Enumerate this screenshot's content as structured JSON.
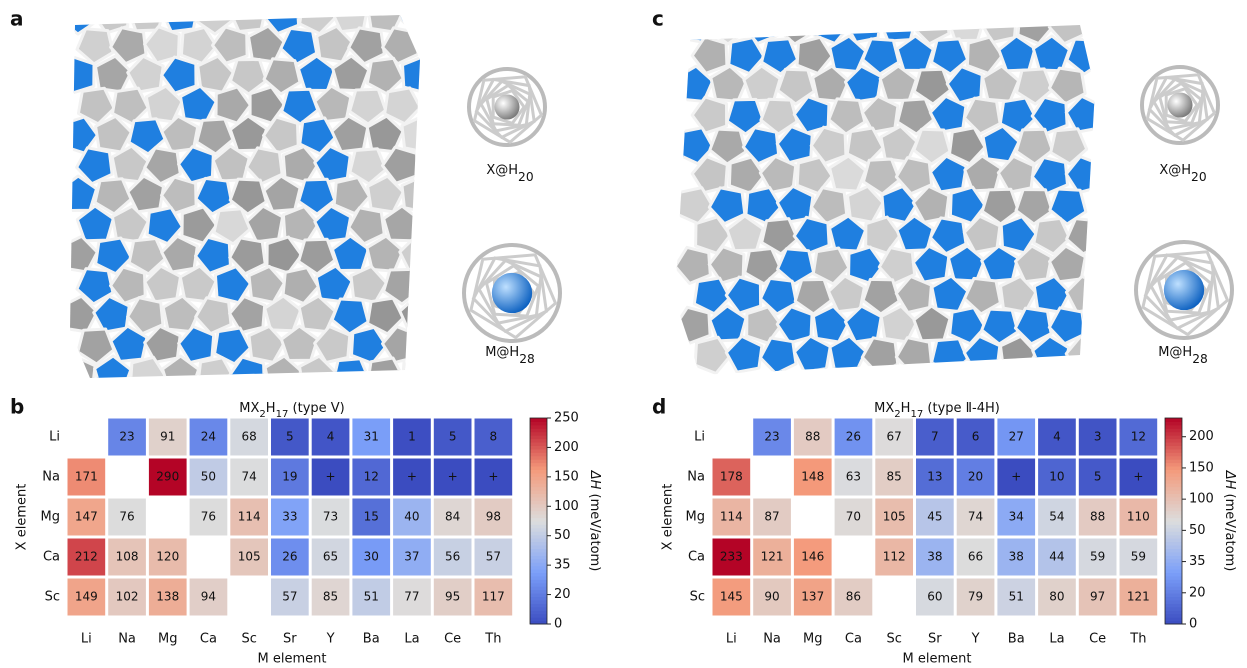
{
  "panels": {
    "a": {
      "label": "a",
      "insets": [
        [
          {
            "text": "X@H"
          },
          {
            "text": "20",
            "sub": true
          }
        ],
        [
          {
            "text": "M@H"
          },
          {
            "text": "28",
            "sub": true
          }
        ]
      ]
    },
    "c": {
      "label": "c",
      "insets": [
        [
          {
            "text": "X@H"
          },
          {
            "text": "20",
            "sub": true
          }
        ],
        [
          {
            "text": "M@H"
          },
          {
            "text": "28",
            "sub": true
          }
        ]
      ]
    }
  },
  "chart_data": [
    {
      "type": "heatmap",
      "panel_label": "b",
      "title": [
        {
          "text": "MX"
        },
        {
          "text": "2",
          "sub": true
        },
        {
          "text": "H"
        },
        {
          "text": "17",
          "sub": true
        },
        {
          "text": " (type V)"
        }
      ],
      "x_label": "M element",
      "y_label": "X element",
      "categories": [
        "Li",
        "Na",
        "Mg",
        "Ca",
        "Sc",
        "Sr",
        "Y",
        "Ba",
        "La",
        "Ce",
        "Th"
      ],
      "rows": [
        "Li",
        "Na",
        "Mg",
        "Ca",
        "Sc"
      ],
      "values": [
        [
          null,
          23,
          91,
          24,
          68,
          5,
          4,
          31,
          1,
          5,
          8
        ],
        [
          171,
          null,
          290,
          50,
          74,
          19,
          "+",
          12,
          "+",
          "+",
          "+"
        ],
        [
          147,
          76,
          null,
          76,
          114,
          33,
          73,
          15,
          40,
          84,
          98
        ],
        [
          212,
          108,
          120,
          null,
          105,
          26,
          65,
          30,
          37,
          56,
          57
        ],
        [
          149,
          102,
          138,
          94,
          null,
          57,
          85,
          51,
          77,
          95,
          117
        ]
      ],
      "colorbar_label": [
        {
          "text": "ΔH",
          "italic": true
        },
        {
          "text": " (meV/atom)"
        }
      ],
      "clim": [
        0,
        250
      ],
      "cticks": [
        0,
        20,
        35,
        50,
        100,
        150,
        200,
        250
      ],
      "colormap": [
        "#3b4cc0",
        "#7b9ff9",
        "#dcdddd",
        "#f49a7b",
        "#b40426"
      ]
    },
    {
      "type": "heatmap",
      "panel_label": "d",
      "title": [
        {
          "text": "MX"
        },
        {
          "text": "2",
          "sub": true
        },
        {
          "text": "H"
        },
        {
          "text": "17",
          "sub": true
        },
        {
          "text": " (type Ⅱ-4H)"
        }
      ],
      "x_label": "M element",
      "y_label": "X element",
      "categories": [
        "Li",
        "Na",
        "Mg",
        "Ca",
        "Sc",
        "Sr",
        "Y",
        "Ba",
        "La",
        "Ce",
        "Th"
      ],
      "rows": [
        "Li",
        "Na",
        "Mg",
        "Ca",
        "Sc"
      ],
      "values": [
        [
          null,
          23,
          88,
          26,
          67,
          7,
          6,
          27,
          4,
          3,
          12
        ],
        [
          178,
          null,
          148,
          63,
          85,
          13,
          20,
          "+",
          10,
          5,
          "+"
        ],
        [
          114,
          87,
          null,
          70,
          105,
          45,
          74,
          34,
          54,
          88,
          110
        ],
        [
          233,
          121,
          146,
          null,
          112,
          38,
          66,
          38,
          44,
          59,
          59
        ],
        [
          145,
          90,
          137,
          86,
          null,
          60,
          79,
          51,
          80,
          97,
          121
        ]
      ],
      "colorbar_label": [
        {
          "text": "ΔH",
          "italic": true
        },
        {
          "text": " (meV/atom)"
        }
      ],
      "clim": [
        0,
        230
      ],
      "cticks": [
        0,
        20,
        35,
        50,
        100,
        150,
        200
      ],
      "colormap": [
        "#3b4cc0",
        "#7b9ff9",
        "#dcdddd",
        "#f49a7b",
        "#b40426"
      ]
    }
  ]
}
